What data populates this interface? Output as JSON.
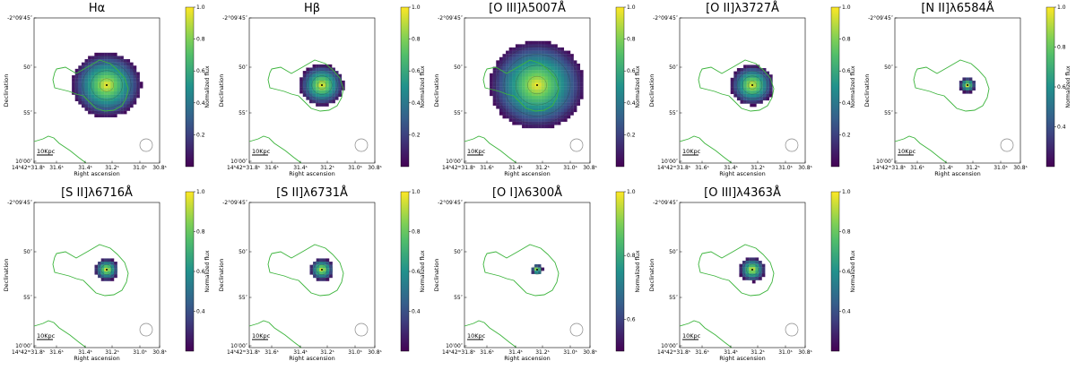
{
  "figure": {
    "xlabel": "Right ascension",
    "ylabel": "Declination",
    "colorbar_label": "Normalized flux",
    "scalebar_label": "10Kpc",
    "x_ticks": [
      "14ʰ42ᵐ31.8ˢ",
      "31.6ˢ",
      "31.4ˢ",
      "31.2ˢ",
      "31.0ˢ",
      "30.8ˢ"
    ],
    "y_ticks": [
      "-2°09′45″",
      "50″",
      "55″",
      "10′00″"
    ],
    "colormap": [
      "#440154",
      "#3b528b",
      "#21918c",
      "#5ec962",
      "#fde725"
    ],
    "contour_color": "#3cb43c",
    "beam_color": "#888888"
  },
  "chart_data": [
    {
      "type": "heatmap",
      "title": "Hα",
      "radius": 0.72,
      "colorbar_ticks": [
        "1.0",
        "0.8",
        "0.6",
        "0.4",
        "0.2"
      ],
      "vmin": 0.0,
      "vmax": 1.0
    },
    {
      "type": "heatmap",
      "title": "Hβ",
      "radius": 0.46,
      "colorbar_ticks": [
        "1.0",
        "0.8",
        "0.6",
        "0.4",
        "0.2"
      ],
      "vmin": 0.0,
      "vmax": 1.0
    },
    {
      "type": "heatmap",
      "title": "[O III]λ5007Å",
      "radius": 0.98,
      "colorbar_ticks": [
        "1.0",
        "0.8",
        "0.6",
        "0.4",
        "0.2"
      ],
      "vmin": 0.0,
      "vmax": 1.0
    },
    {
      "type": "heatmap",
      "title": "[O II]λ3727Å",
      "radius": 0.45,
      "colorbar_ticks": [
        "1.0",
        "0.8",
        "0.6",
        "0.4",
        "0.2"
      ],
      "vmin": 0.0,
      "vmax": 1.0
    },
    {
      "type": "heatmap",
      "title": "[N II]λ6584Å",
      "radius": 0.17,
      "colorbar_ticks": [
        "1.0",
        "0.8",
        "0.6",
        "0.4"
      ],
      "vmin": 0.2,
      "vmax": 1.0
    },
    {
      "type": "heatmap",
      "title": "[S II]λ6716Å",
      "radius": 0.25,
      "colorbar_ticks": [
        "1.0",
        "0.8",
        "0.6",
        "0.4"
      ],
      "vmin": 0.2,
      "vmax": 1.0
    },
    {
      "type": "heatmap",
      "title": "[S II]λ6731Å",
      "radius": 0.25,
      "colorbar_ticks": [
        "1.0",
        "0.8",
        "0.6",
        "0.4"
      ],
      "vmin": 0.2,
      "vmax": 1.0
    },
    {
      "type": "heatmap",
      "title": "[O I]λ6300Å",
      "radius": 0.12,
      "colorbar_ticks": [
        "1.0",
        "0.8",
        "0.6"
      ],
      "vmin": 0.5,
      "vmax": 1.0
    },
    {
      "type": "heatmap",
      "title": "[O III]λ4363Å",
      "radius": 0.27,
      "colorbar_ticks": [
        "1.0",
        "0.8",
        "0.6",
        "0.4"
      ],
      "vmin": 0.2,
      "vmax": 1.0
    }
  ]
}
